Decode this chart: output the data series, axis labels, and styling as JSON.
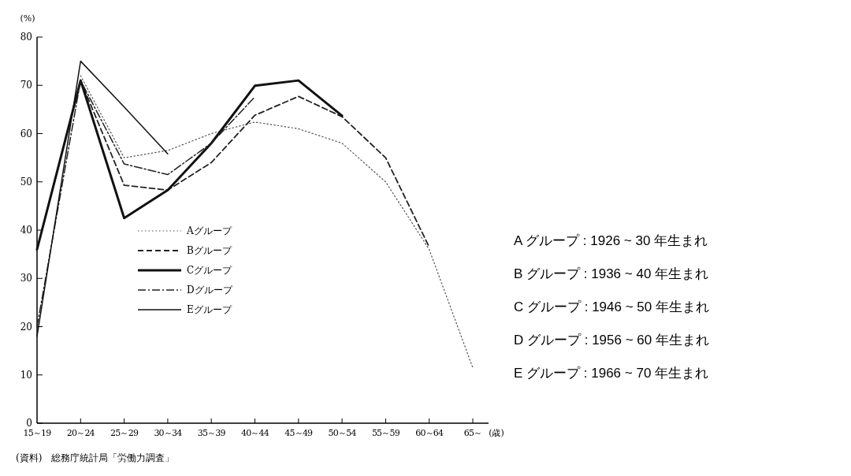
{
  "chart_data": {
    "type": "line",
    "ylabel": "(%)",
    "xlabel": "(歳)",
    "categories": [
      "15～19",
      "20～24",
      "25～29",
      "30～34",
      "35～39",
      "40～44",
      "45～49",
      "50～54",
      "55～59",
      "60～64",
      "65～"
    ],
    "ylim": [
      0,
      80
    ],
    "yticks": [
      0,
      10,
      20,
      30,
      40,
      50,
      60,
      70,
      80
    ],
    "grid": false,
    "legend": "center",
    "marker": "none",
    "series": [
      {
        "name": "Aグループ",
        "color": "#555555",
        "line_style": "dotted",
        "values": [
          null,
          72,
          55,
          56.5,
          60,
          62.4,
          61,
          58,
          50,
          36,
          11.5
        ]
      },
      {
        "name": "Bグループ",
        "color": "#222222",
        "line_style": "dashed",
        "values": [
          null,
          71,
          49.3,
          48.3,
          54,
          63.8,
          67.7,
          63.5,
          55,
          36.5,
          null
        ]
      },
      {
        "name": "Cグループ",
        "color": "#111111",
        "line_style": "solid",
        "values": [
          36,
          71,
          42.5,
          48.3,
          58,
          69.9,
          71,
          63.7,
          null,
          null,
          null
        ]
      },
      {
        "name": "Dグループ",
        "color": "#222222",
        "line_style": "dashdot",
        "values": [
          20,
          71,
          53.7,
          51.5,
          58,
          67.6,
          null,
          null,
          null,
          null,
          null
        ]
      },
      {
        "name": "Eグループ",
        "color": "#111111",
        "line_style": "solid",
        "values": [
          18,
          75,
          65.5,
          55.8,
          null,
          null,
          null,
          null,
          null,
          null,
          null
        ]
      }
    ],
    "annotations": [
      "A グループ : 1926 ~ 30 年生まれ",
      "B グループ : 1936 ~ 40 年生まれ",
      "C グループ : 1946 ~ 50 年生まれ",
      "D グループ : 1956 ~ 60 年生まれ",
      "E グループ : 1966 ~ 70 年生まれ",
      "(資料)　総務庁統計局「労働力調査」"
    ]
  }
}
